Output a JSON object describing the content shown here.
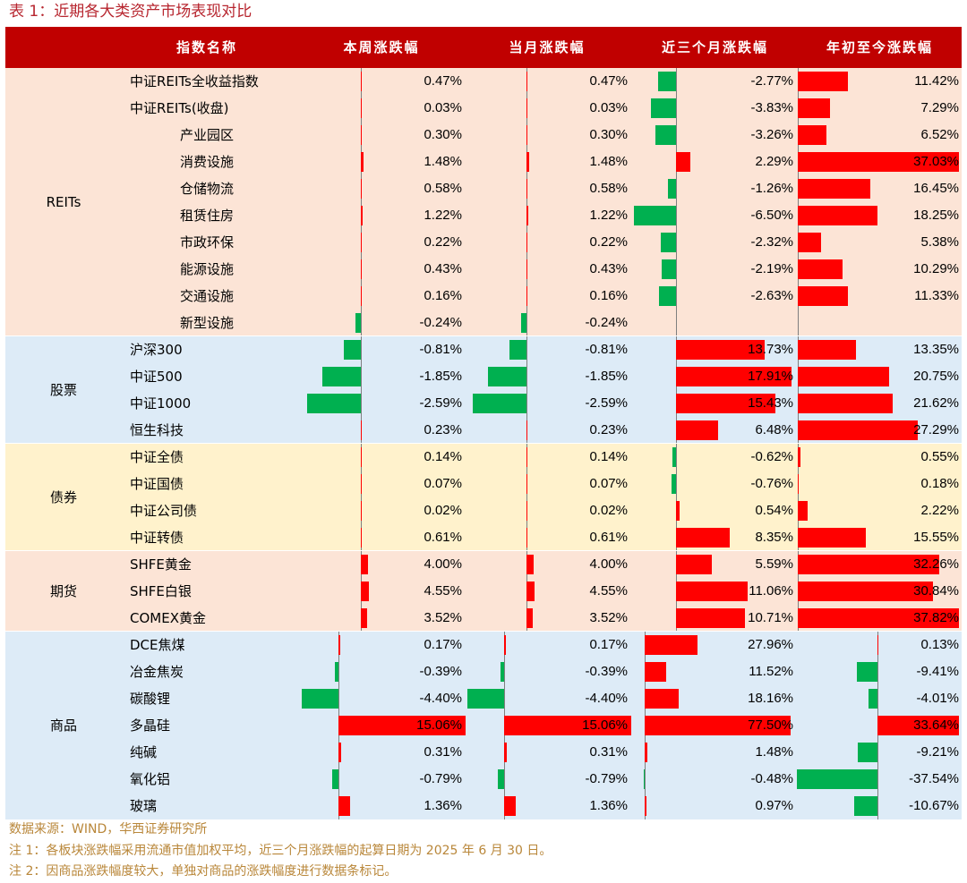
{
  "caption": "表 1：近期各大类资产市场表现对比",
  "headers": [
    "指数名称",
    "本周涨跌幅",
    "当月涨跌幅",
    "近三个月涨跌幅",
    "年初至今涨跌幅"
  ],
  "colors": {
    "header": "#c00000",
    "positive": "#ff0000",
    "negative": "#00b050",
    "reits_bg": "#fce4d6",
    "stock_bg": "#ddebf7",
    "bond_bg": "#fff2cc",
    "futures_bg": "#fce4d6",
    "commodity_bg": "#ddebf7"
  },
  "groups": [
    {
      "label": "REITs",
      "bg": "#fce4d6",
      "rows": [
        {
          "name": "中证REITs全收益指数",
          "indent": 0,
          "week": "0.47%",
          "month": "0.47%",
          "three_month": "-2.77%",
          "ytd": "11.42%"
        },
        {
          "name": "中证REITs(收盘)",
          "indent": 0,
          "week": "0.03%",
          "month": "0.03%",
          "three_month": "-3.83%",
          "ytd": "7.29%"
        },
        {
          "name": "产业园区",
          "indent": 1,
          "week": "0.30%",
          "month": "0.30%",
          "three_month": "-3.26%",
          "ytd": "6.52%"
        },
        {
          "name": "消费设施",
          "indent": 1,
          "week": "1.48%",
          "month": "1.48%",
          "three_month": "2.29%",
          "ytd": "37.03%"
        },
        {
          "name": "仓储物流",
          "indent": 1,
          "week": "0.58%",
          "month": "0.58%",
          "three_month": "-1.26%",
          "ytd": "16.45%"
        },
        {
          "name": "租赁住房",
          "indent": 1,
          "week": "1.22%",
          "month": "1.22%",
          "three_month": "-6.50%",
          "ytd": "18.25%"
        },
        {
          "name": "市政环保",
          "indent": 1,
          "week": "0.22%",
          "month": "0.22%",
          "three_month": "-2.32%",
          "ytd": "5.38%"
        },
        {
          "name": "能源设施",
          "indent": 1,
          "week": "0.43%",
          "month": "0.43%",
          "three_month": "-2.19%",
          "ytd": "10.29%"
        },
        {
          "name": "交通设施",
          "indent": 1,
          "week": "0.16%",
          "month": "0.16%",
          "three_month": "-2.63%",
          "ytd": "11.33%"
        },
        {
          "name": "新型设施",
          "indent": 1,
          "week": "-0.24%",
          "month": "-0.24%",
          "three_month": "",
          "ytd": ""
        }
      ]
    },
    {
      "label": "股票",
      "bg": "#ddebf7",
      "rows": [
        {
          "name": "沪深300",
          "indent": 0,
          "week": "-0.81%",
          "month": "-0.81%",
          "three_month": "13.73%",
          "ytd": "13.35%"
        },
        {
          "name": "中证500",
          "indent": 0,
          "week": "-1.85%",
          "month": "-1.85%",
          "three_month": "17.91%",
          "ytd": "20.75%"
        },
        {
          "name": "中证1000",
          "indent": 0,
          "week": "-2.59%",
          "month": "-2.59%",
          "three_month": "15.43%",
          "ytd": "21.62%"
        },
        {
          "name": "恒生科技",
          "indent": 0,
          "week": "0.23%",
          "month": "0.23%",
          "three_month": "6.48%",
          "ytd": "27.29%"
        }
      ]
    },
    {
      "label": "债券",
      "bg": "#fff2cc",
      "rows": [
        {
          "name": "中证全债",
          "indent": 0,
          "week": "0.14%",
          "month": "0.14%",
          "three_month": "-0.62%",
          "ytd": "0.55%"
        },
        {
          "name": "中证国债",
          "indent": 0,
          "week": "0.07%",
          "month": "0.07%",
          "three_month": "-0.76%",
          "ytd": "0.18%"
        },
        {
          "name": "中证公司债",
          "indent": 0,
          "week": "0.02%",
          "month": "0.02%",
          "three_month": "0.54%",
          "ytd": "2.22%"
        },
        {
          "name": "中证转债",
          "indent": 0,
          "week": "0.61%",
          "month": "0.61%",
          "three_month": "8.35%",
          "ytd": "15.55%"
        }
      ]
    },
    {
      "label": "期货",
      "bg": "#fce4d6",
      "rows": [
        {
          "name": "SHFE黄金",
          "indent": 0,
          "week": "4.00%",
          "month": "4.00%",
          "three_month": "5.59%",
          "ytd": "32.26%"
        },
        {
          "name": "SHFE白银",
          "indent": 0,
          "week": "4.55%",
          "month": "4.55%",
          "three_month": "11.06%",
          "ytd": "30.84%"
        },
        {
          "name": "COMEX黄金",
          "indent": 0,
          "week": "3.52%",
          "month": "3.52%",
          "three_month": "10.71%",
          "ytd": "37.82%"
        }
      ]
    },
    {
      "label": "商品",
      "bg": "#ddebf7",
      "rows": [
        {
          "name": "DCE焦煤",
          "indent": 0,
          "week": "0.17%",
          "month": "0.17%",
          "three_month": "27.96%",
          "ytd": "0.13%"
        },
        {
          "name": "冶金焦炭",
          "indent": 0,
          "week": "-0.39%",
          "month": "-0.39%",
          "three_month": "11.52%",
          "ytd": "-9.41%"
        },
        {
          "name": "碳酸锂",
          "indent": 0,
          "week": "-4.40%",
          "month": "-4.40%",
          "three_month": "18.16%",
          "ytd": "-4.01%"
        },
        {
          "name": "多晶硅",
          "indent": 0,
          "week": "15.06%",
          "month": "15.06%",
          "three_month": "77.50%",
          "ytd": "33.64%"
        },
        {
          "name": "纯碱",
          "indent": 0,
          "week": "0.31%",
          "month": "0.31%",
          "three_month": "1.48%",
          "ytd": "-9.21%"
        },
        {
          "name": "氧化铝",
          "indent": 0,
          "week": "-0.79%",
          "month": "-0.79%",
          "three_month": "-0.48%",
          "ytd": "-37.54%"
        },
        {
          "name": "玻璃",
          "indent": 0,
          "week": "1.36%",
          "month": "1.36%",
          "three_month": "0.97%",
          "ytd": "-10.67%"
        }
      ]
    }
  ],
  "notes": [
    "数据来源：WIND，华西证券研究所",
    "注 1：各板块涨跌幅采用流通市值加权平均，近三个月涨跌幅的起算日期为 2025 年 6 月 30 日。",
    "注 2：因商品涨跌幅度较大，单独对商品的涨跌幅度进行数据条标记。"
  ]
}
